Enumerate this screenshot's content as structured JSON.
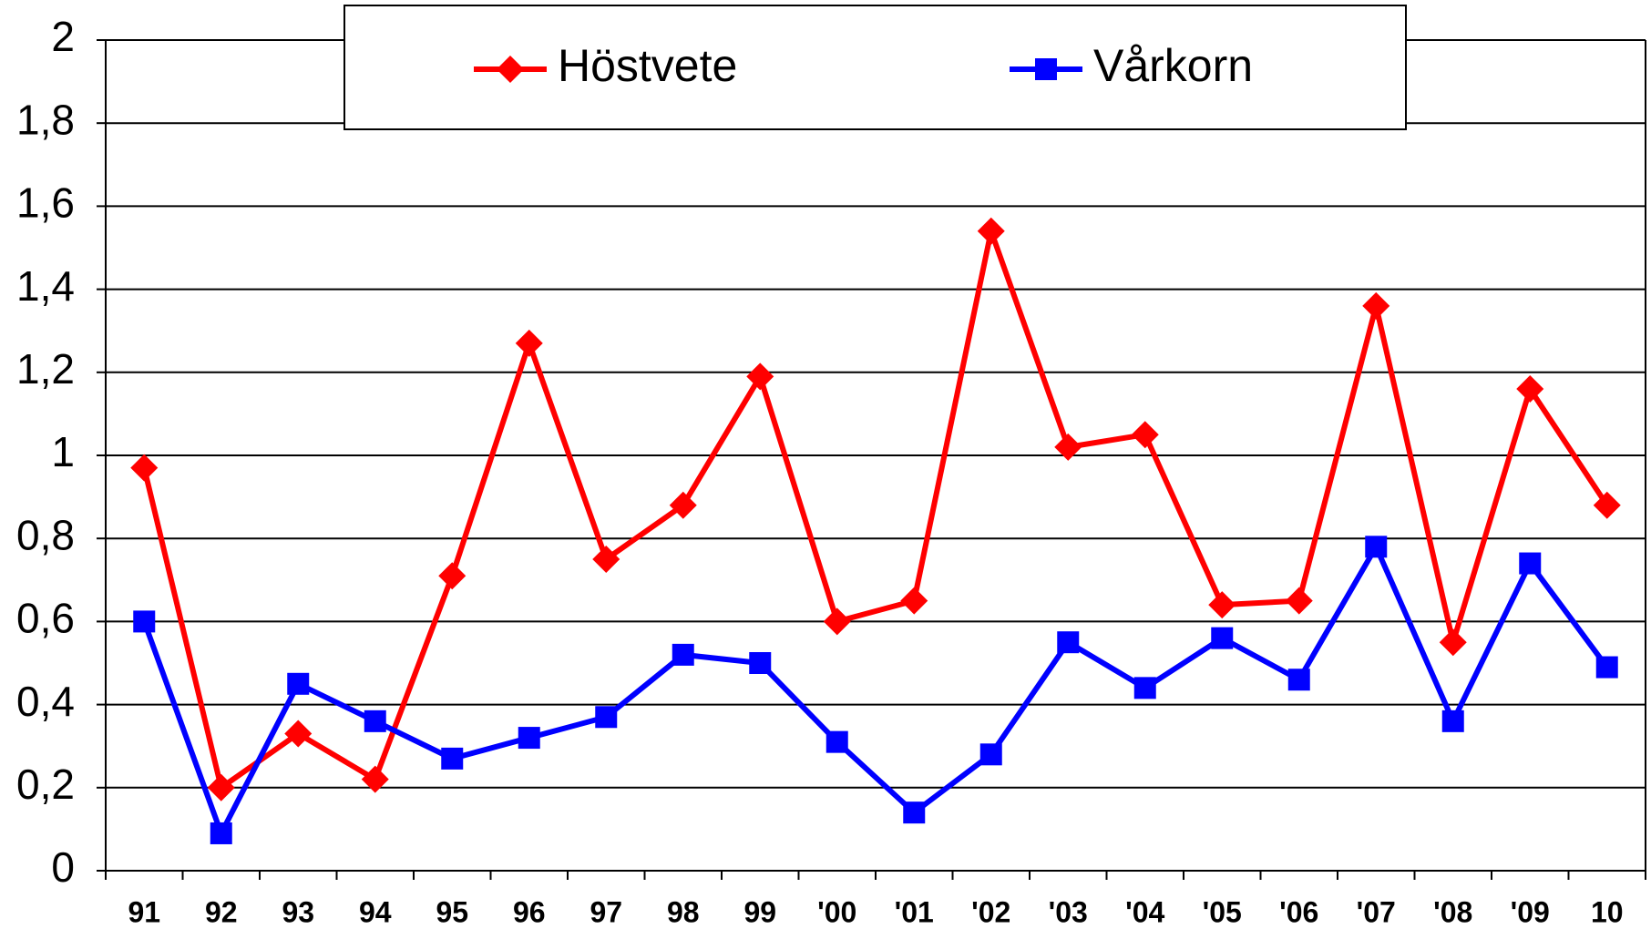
{
  "chart_data": {
    "type": "line",
    "categories": [
      "91",
      "92",
      "93",
      "94",
      "95",
      "96",
      "97",
      "98",
      "99",
      "'00",
      "'01",
      "'02",
      "'03",
      "'04",
      "'05",
      "'06",
      "'07",
      "'08",
      "'09",
      "10"
    ],
    "series": [
      {
        "name": "Höstvete",
        "color": "#ff0000",
        "marker": "diamond",
        "values": [
          0.97,
          0.2,
          0.33,
          0.22,
          0.71,
          1.27,
          0.75,
          0.88,
          1.19,
          0.6,
          0.65,
          1.54,
          1.02,
          1.05,
          0.64,
          0.65,
          1.36,
          0.55,
          1.16,
          0.88
        ]
      },
      {
        "name": "Vårkorn",
        "color": "#0000ff",
        "marker": "square",
        "values": [
          0.6,
          0.09,
          0.45,
          0.36,
          0.27,
          0.32,
          0.37,
          0.52,
          0.5,
          0.31,
          0.14,
          0.28,
          0.55,
          0.44,
          0.56,
          0.46,
          0.78,
          0.36,
          0.74,
          0.49
        ]
      }
    ],
    "ylim": [
      0,
      2
    ],
    "yticks": [
      0,
      {
        "value": 0.2,
        "label": "0,2"
      },
      {
        "value": 0.4,
        "label": "0,4"
      },
      {
        "value": 0.6,
        "label": "0,6"
      },
      {
        "value": 0.8,
        "label": "0,8"
      },
      1,
      {
        "value": 1.2,
        "label": "1,2"
      },
      {
        "value": 1.4,
        "label": "1,4"
      },
      {
        "value": 1.6,
        "label": "1,6"
      },
      {
        "value": 1.8,
        "label": "1,8"
      },
      2
    ],
    "grid": true
  }
}
